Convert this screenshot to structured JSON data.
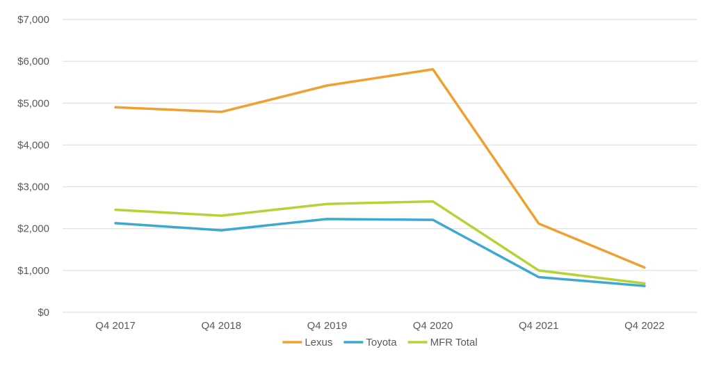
{
  "chart_data": {
    "type": "line",
    "title": "",
    "xlabel": "",
    "ylabel": "",
    "categories": [
      "Q4 2017",
      "Q4 2018",
      "Q4 2019",
      "Q4 2020",
      "Q4 2021",
      "Q4 2022"
    ],
    "ylim": [
      0,
      7000
    ],
    "yticks": [
      0,
      1000,
      2000,
      3000,
      4000,
      5000,
      6000,
      7000
    ],
    "ytick_labels": [
      "$0",
      "$1,000",
      "$2,000",
      "$3,000",
      "$4,000",
      "$5,000",
      "$6,000",
      "$7,000"
    ],
    "grid": true,
    "legend_position": "bottom",
    "series": [
      {
        "name": "Lexus",
        "color": "#F0A030",
        "values": [
          4900,
          4790,
          5420,
          5810,
          2120,
          1070
        ]
      },
      {
        "name": "Toyota",
        "color": "#3DA8D0",
        "values": [
          2130,
          1960,
          2230,
          2210,
          840,
          630
        ]
      },
      {
        "name": "MFR Total",
        "color": "#B5D334",
        "values": [
          2450,
          2310,
          2590,
          2650,
          1000,
          690
        ]
      }
    ]
  }
}
